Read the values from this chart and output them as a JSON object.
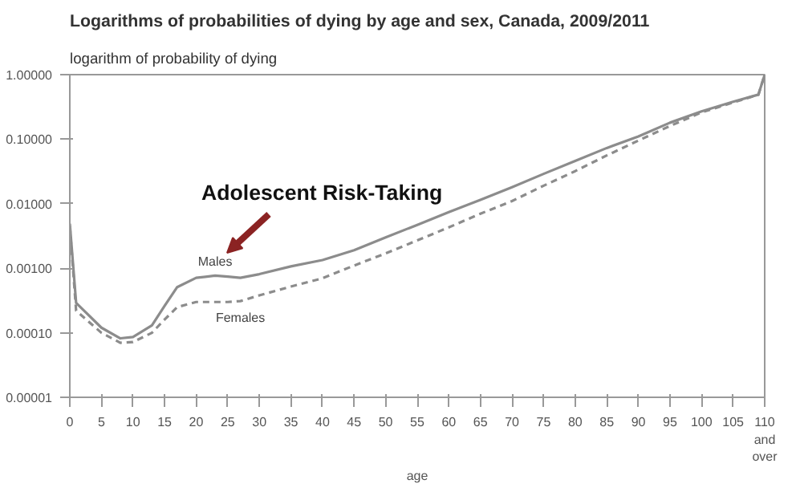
{
  "chart_data": {
    "type": "line",
    "title": "Logarithms of probabilities of dying by age and sex, Canada, 2009/2011",
    "ylabel": "logarithm of probability of dying",
    "xlabel": "age",
    "x": [
      0,
      1,
      5,
      8,
      10,
      13,
      15,
      17,
      20,
      23,
      25,
      27,
      30,
      35,
      40,
      45,
      50,
      55,
      60,
      65,
      70,
      75,
      80,
      85,
      90,
      95,
      100,
      105,
      109,
      110
    ],
    "series": [
      {
        "name": "Males",
        "color": "#8c8c8c",
        "line_style": "solid",
        "values": [
          0.0049,
          0.00029,
          0.00012,
          8.2e-05,
          8.6e-05,
          0.00013,
          0.00026,
          0.00051,
          0.00071,
          0.00077,
          0.00074,
          0.00071,
          0.00081,
          0.00107,
          0.00134,
          0.0019,
          0.003,
          0.0047,
          0.0074,
          0.0115,
          0.018,
          0.029,
          0.046,
          0.073,
          0.11,
          0.18,
          0.27,
          0.38,
          0.49,
          1.0
        ]
      },
      {
        "name": "Females",
        "color": "#8c8c8c",
        "line_style": "dashed",
        "values": [
          0.0045,
          0.00022,
          0.0001,
          7e-05,
          7.2e-05,
          0.0001,
          0.00016,
          0.00025,
          0.0003,
          0.0003,
          0.0003,
          0.00031,
          0.00038,
          0.00052,
          0.0007,
          0.0011,
          0.0017,
          0.0027,
          0.0043,
          0.007,
          0.011,
          0.019,
          0.032,
          0.056,
          0.095,
          0.16,
          0.26,
          0.37,
          0.49,
          1.0
        ]
      }
    ],
    "annotations": [
      "Adolescent Risk-Taking"
    ],
    "log": "y",
    "xlim": [
      0,
      110
    ],
    "ylim": [
      1e-05,
      1
    ],
    "xticks": [
      0,
      5,
      10,
      15,
      20,
      25,
      30,
      35,
      40,
      45,
      50,
      55,
      60,
      65,
      70,
      75,
      80,
      85,
      90,
      95,
      100,
      105,
      {
        "value": 110,
        "label": "110\nand\nover"
      }
    ],
    "yticks": [
      {
        "value": 1e-05,
        "label": "0.00001"
      },
      {
        "value": 0.0001,
        "label": "0.00010"
      },
      {
        "value": 0.001,
        "label": "0.00100"
      },
      {
        "value": 0.01,
        "label": "0.01000"
      },
      {
        "value": 0.1,
        "label": "0.10000"
      },
      {
        "value": 1,
        "label": "1.00000"
      }
    ],
    "grid": false
  }
}
